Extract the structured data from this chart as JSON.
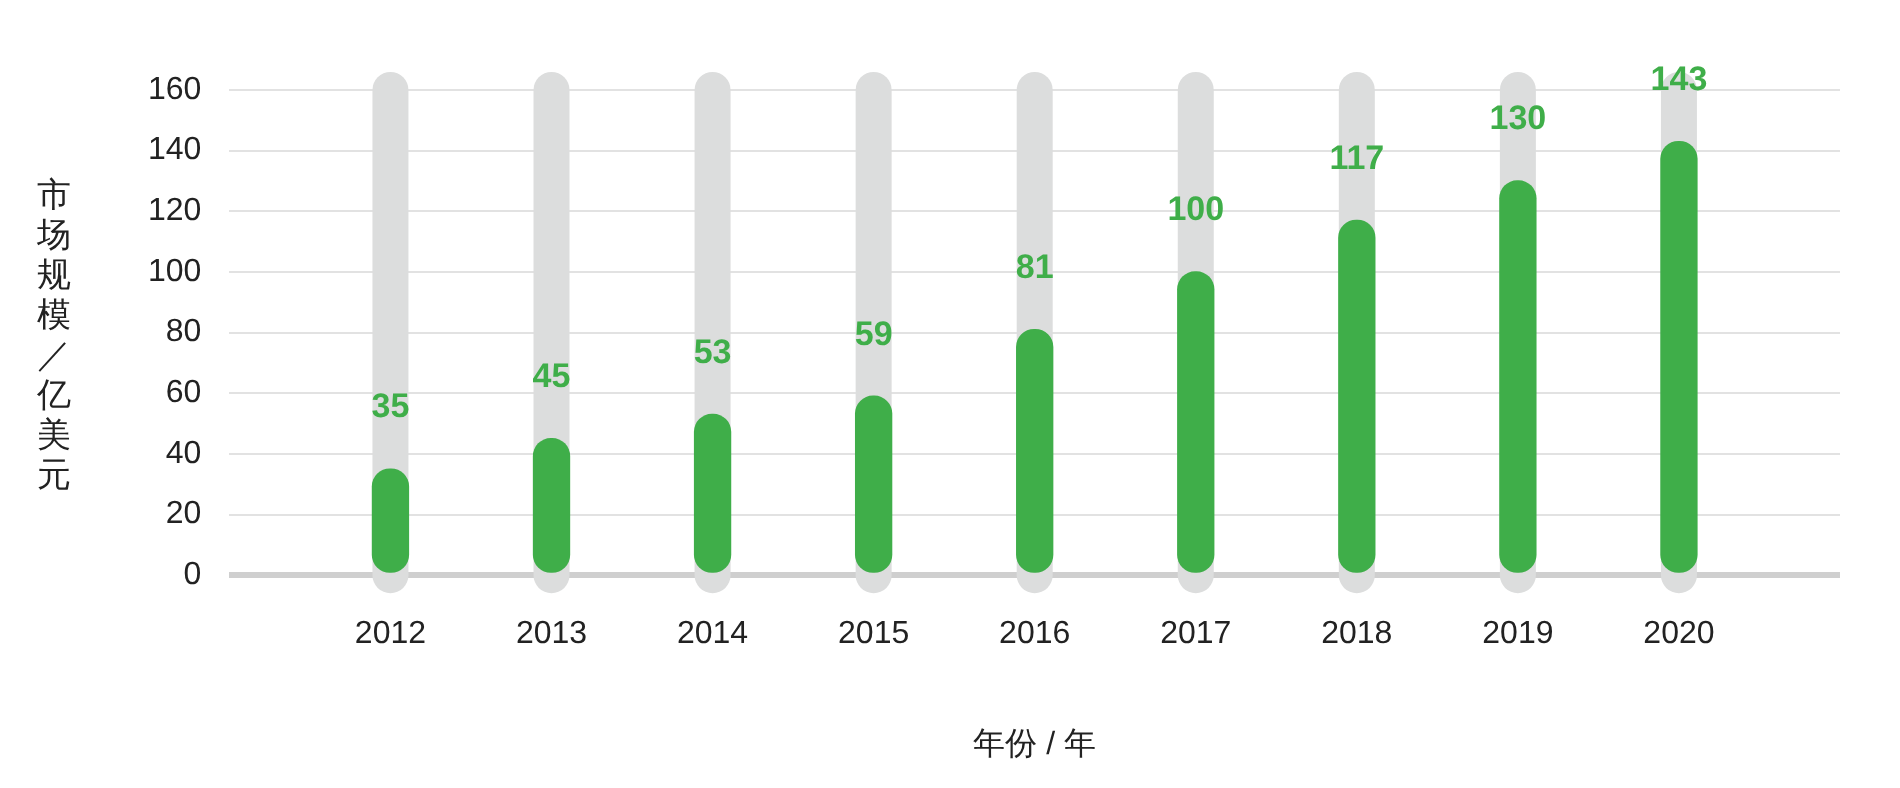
{
  "chart_data": {
    "type": "bar",
    "xlabel": "年份 / 年",
    "ylabel": "市场规模／亿美元",
    "categories": [
      "2012",
      "2013",
      "2014",
      "2015",
      "2016",
      "2017",
      "2018",
      "2019",
      "2020"
    ],
    "values": [
      35,
      45,
      53,
      59,
      81,
      100,
      117,
      130,
      143
    ],
    "color": "#3fae49",
    "ylim": [
      0,
      160
    ],
    "yticks": [
      0,
      20,
      40,
      60,
      80,
      100,
      120,
      140,
      160
    ],
    "grid": "y",
    "data_labels": true
  }
}
